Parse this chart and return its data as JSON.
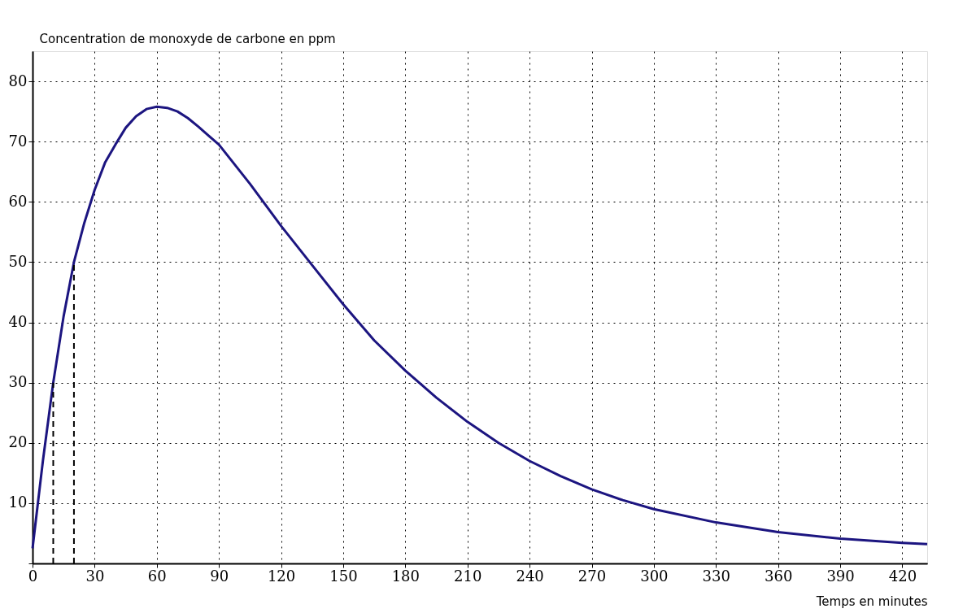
{
  "chart_data": {
    "type": "line",
    "xlabel": "Temps en minutes",
    "ylabel": "Concentration de monoxyde de carbone en ppm",
    "xlim": [
      0,
      432
    ],
    "ylim": [
      0,
      85
    ],
    "xticks": [
      0,
      30,
      60,
      90,
      120,
      150,
      180,
      210,
      240,
      270,
      300,
      330,
      360,
      390,
      420
    ],
    "yticks": [
      {
        "value": 0,
        "label": null
      },
      10,
      20,
      30,
      40,
      50,
      60,
      70,
      80
    ],
    "grid": true,
    "line_style": "solid",
    "marker": "none",
    "series": [
      {
        "color": "#1c1580",
        "x": [
          0,
          5,
          10,
          15,
          20,
          25,
          30,
          35,
          40,
          45,
          50,
          55,
          60,
          65,
          70,
          75,
          80,
          90,
          105,
          120,
          135,
          150,
          165,
          180,
          195,
          210,
          225,
          240,
          255,
          270,
          285,
          300,
          330,
          360,
          390,
          420,
          432
        ],
        "values": [
          2.5,
          17,
          30,
          41,
          50,
          56.5,
          62,
          66.5,
          69.5,
          72.3,
          74.2,
          75.4,
          75.8,
          75.6,
          75,
          73.9,
          72.5,
          69.5,
          63,
          56,
          49.5,
          43,
          37,
          32,
          27.5,
          23.5,
          20,
          17,
          14.5,
          12.3,
          10.5,
          9,
          6.8,
          5.2,
          4.1,
          3.4,
          3.2
        ]
      },
      {
        "type": "line",
        "color": "#000000",
        "line_style": "dashed",
        "x": [
          10,
          10
        ],
        "values": [
          0,
          30
        ]
      },
      {
        "type": "line",
        "color": "#000000",
        "line_style": "dashed",
        "x": [
          20,
          20
        ],
        "values": [
          0,
          50
        ]
      }
    ]
  }
}
